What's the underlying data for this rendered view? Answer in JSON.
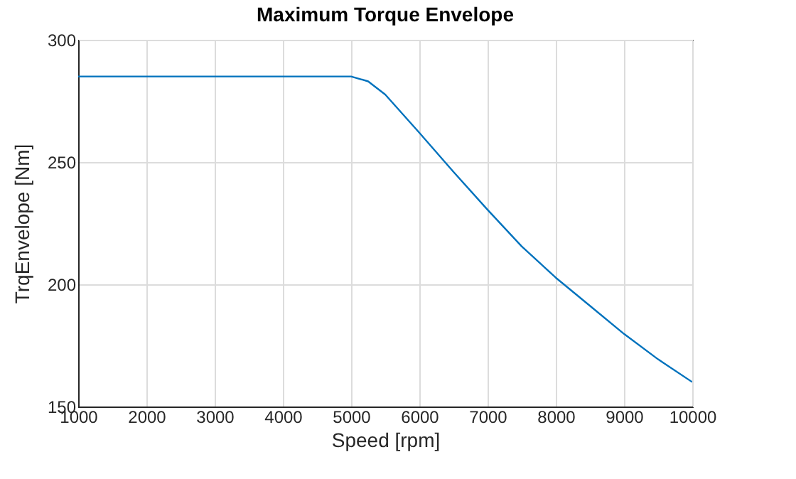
{
  "chart_data": {
    "type": "line",
    "title": "Maximum Torque Envelope",
    "xlabel": "Speed [rpm]",
    "ylabel": "TrqEnvelope [Nm]",
    "x": [
      1000,
      5000,
      5250,
      5500,
      6000,
      6500,
      7000,
      7500,
      8000,
      8500,
      9000,
      9500,
      10000
    ],
    "series": [
      {
        "color": "#0072bd",
        "values": [
          285,
          285,
          283,
          277.6,
          262,
          246,
          230.5,
          215.5,
          202.7,
          191.2,
          179.7,
          169.3,
          160
        ]
      }
    ],
    "xlim": [
      1000,
      10000
    ],
    "xticks": [
      1000,
      2000,
      3000,
      4000,
      5000,
      6000,
      7000,
      8000,
      9000,
      10000
    ],
    "ylim": [
      150,
      300
    ],
    "yticks": [
      150,
      200,
      250,
      300
    ],
    "grid": true
  }
}
